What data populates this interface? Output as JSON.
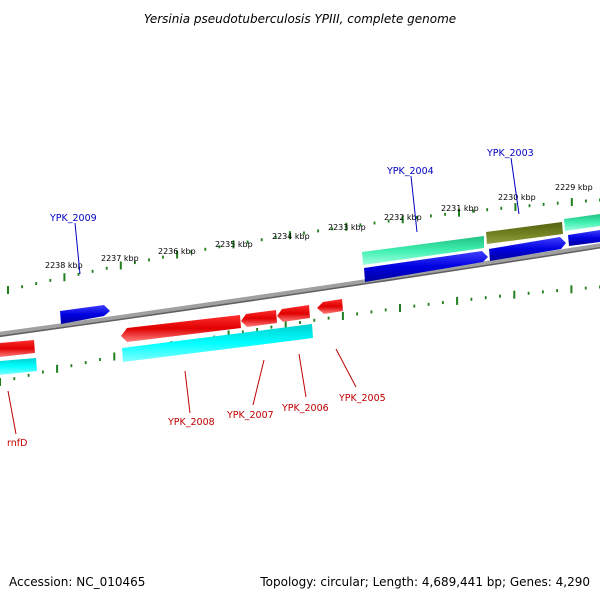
{
  "title": "Yersinia pseudotuberculosis YPIII, complete genome",
  "footer": {
    "accession": "Accession: NC_010465",
    "summary": "Topology: circular; Length: 4,689,441 bp; Genes: 4,290"
  },
  "colors": {
    "backbone": "#808080",
    "tick": "#208020",
    "forward_gene_label": "#0000c0",
    "reverse_gene_label": "#c00000",
    "blue_gene": "#0000e0",
    "red_gene": "#e00000",
    "cyan_feature": "#00e8e8",
    "aqua_feature": "#30e8a0",
    "olive_feature": "#708020"
  },
  "scale_labels": [
    "2229 kbp",
    "2230 kbp",
    "2231 kbp",
    "2232 kbp",
    "2233 kbp",
    "2234 kbp",
    "2235 kbp",
    "2236 kbp",
    "2237 kbp",
    "2238 kbp"
  ],
  "gene_labels": {
    "forward": [
      "YPK_2003",
      "YPK_2004",
      "YPK_2009"
    ],
    "reverse": [
      "YPK_2005",
      "YPK_2006",
      "YPK_2007",
      "YPK_2008",
      "rnfD"
    ]
  }
}
